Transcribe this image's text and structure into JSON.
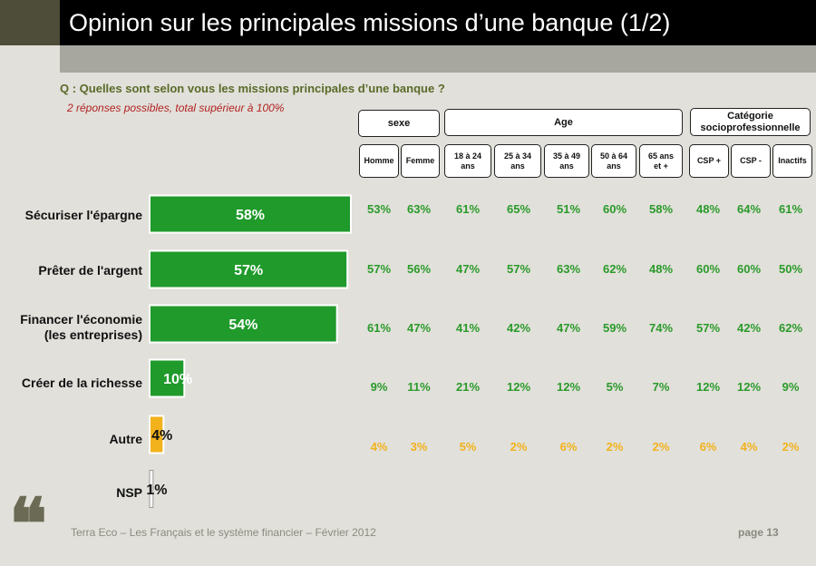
{
  "title": "Opinion sur les principales missions d’une banque (1/2)",
  "question": "Q : Quelles sont selon vous les missions principales d’une banque ?",
  "note": "2 réponses possibles, total supérieur à 100%",
  "groups": [
    "sexe",
    "Age",
    "Catégorie socioprofessionnelle"
  ],
  "subgroups": [
    "Homme",
    "Femme",
    "18 à 24 ans",
    "25 à 34 ans",
    "35 à 49 ans",
    "50 à 64 ans",
    "65 ans et +",
    "CSP +",
    "CSP -",
    "Inactifs"
  ],
  "colors": {
    "main_bar": "#1f9a2b",
    "other_bar": "#f2b21c",
    "nsp_bar": "#ffffff",
    "main_text": "#2a9a2a",
    "other_text": "#f2b21c"
  },
  "chart_data": {
    "type": "bar",
    "orientation": "horizontal",
    "categories": [
      "Sécuriser l'épargne",
      "Prêter de l'argent",
      "Financer l'économie (les entreprises)",
      "Créer de la richesse",
      "Autre",
      "NSP"
    ],
    "values": [
      58,
      57,
      54,
      10,
      4,
      1
    ],
    "value_labels": [
      "58%",
      "57%",
      "54%",
      "10%",
      "4%",
      "1%"
    ],
    "unit": "%",
    "breakdown": [
      [
        "53%",
        "63%",
        "61%",
        "65%",
        "51%",
        "60%",
        "58%",
        "48%",
        "64%",
        "61%"
      ],
      [
        "57%",
        "56%",
        "47%",
        "57%",
        "63%",
        "62%",
        "48%",
        "60%",
        "60%",
        "50%"
      ],
      [
        "61%",
        "47%",
        "41%",
        "42%",
        "47%",
        "59%",
        "74%",
        "57%",
        "42%",
        "62%"
      ],
      [
        "9%",
        "11%",
        "21%",
        "12%",
        "12%",
        "5%",
        "7%",
        "12%",
        "12%",
        "9%"
      ],
      [
        "4%",
        "3%",
        "5%",
        "2%",
        "6%",
        "2%",
        "2%",
        "6%",
        "4%",
        "2%"
      ],
      [
        "",
        "",
        "",
        "",
        "",
        "",
        "",
        "",
        "",
        ""
      ]
    ]
  },
  "footer": "Terra Eco – Les Français et le système financier – Février 2012",
  "page": "page 13",
  "icons": {
    "quote": "quote-icon"
  }
}
